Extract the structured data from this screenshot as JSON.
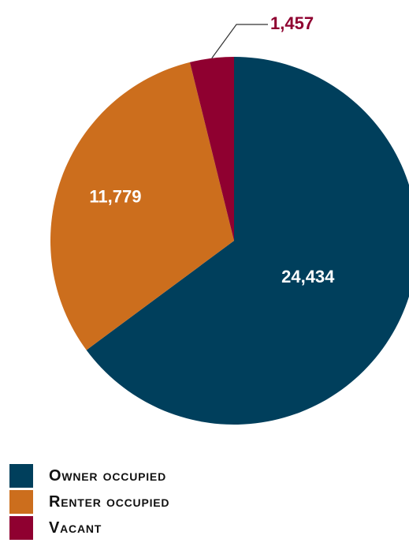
{
  "chart_data": {
    "type": "pie",
    "title": "",
    "series": [
      {
        "categories": [
          "Owner occupied",
          "Renter occupied",
          "Vacant"
        ],
        "values": [
          24434,
          11779,
          1457
        ],
        "labels": [
          "24,434",
          "11,779",
          "1,457"
        ],
        "colors": [
          "#003f5c",
          "#cc6e1d",
          "#8f0030"
        ],
        "label_colors": [
          "#ffffff",
          "#ffffff",
          "#8f0030"
        ]
      }
    ],
    "legend": {
      "placement": "bottom-left",
      "entries": [
        "Owner occupied",
        "Renter occupied",
        "Vacant"
      ]
    },
    "start_angle": "12 o'clock",
    "direction": "clockwise"
  }
}
